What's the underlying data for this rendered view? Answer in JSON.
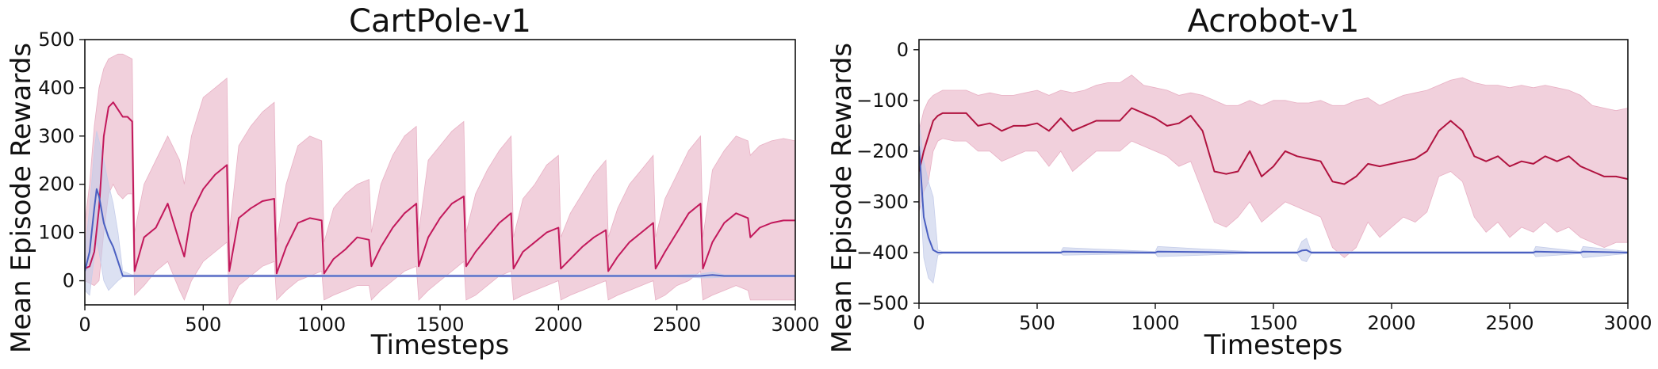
{
  "chart_data": [
    {
      "type": "line",
      "title": "CartPole-v1",
      "xlabel": "Timesteps",
      "ylabel": "Mean Episode Rewards",
      "xlim": [
        0,
        3000
      ],
      "ylim": [
        -50,
        500
      ],
      "xticks": [
        0,
        500,
        1000,
        1500,
        2000,
        2500,
        3000
      ],
      "yticks": [
        0,
        100,
        200,
        300,
        400,
        500
      ],
      "grid": false,
      "series": [
        {
          "color": "#c2185b",
          "fill_color": "#e8b0c4",
          "x": [
            0,
            20,
            40,
            60,
            80,
            100,
            120,
            140,
            160,
            180,
            200,
            210,
            250,
            300,
            350,
            400,
            420,
            450,
            500,
            550,
            600,
            610,
            650,
            700,
            750,
            800,
            810,
            850,
            900,
            950,
            1000,
            1010,
            1050,
            1100,
            1150,
            1200,
            1210,
            1250,
            1300,
            1350,
            1400,
            1410,
            1450,
            1500,
            1550,
            1600,
            1610,
            1650,
            1700,
            1750,
            1800,
            1810,
            1850,
            1900,
            1950,
            2000,
            2010,
            2050,
            2100,
            2150,
            2200,
            2210,
            2250,
            2300,
            2350,
            2400,
            2410,
            2450,
            2500,
            2550,
            2600,
            2610,
            2650,
            2700,
            2750,
            2800,
            2810,
            2850,
            2900,
            2950,
            3000
          ],
          "y": [
            25,
            30,
            60,
            150,
            300,
            360,
            370,
            355,
            340,
            340,
            330,
            20,
            90,
            110,
            160,
            80,
            50,
            140,
            190,
            220,
            240,
            20,
            130,
            150,
            165,
            170,
            15,
            70,
            120,
            130,
            125,
            15,
            45,
            65,
            90,
            85,
            30,
            70,
            110,
            140,
            160,
            30,
            90,
            130,
            160,
            175,
            30,
            60,
            90,
            120,
            140,
            25,
            60,
            80,
            100,
            110,
            25,
            45,
            70,
            90,
            105,
            20,
            50,
            80,
            100,
            120,
            25,
            60,
            100,
            140,
            160,
            25,
            80,
            120,
            140,
            130,
            90,
            110,
            120,
            125,
            125
          ],
          "upper": [
            120,
            200,
            320,
            400,
            440,
            460,
            465,
            470,
            470,
            465,
            460,
            100,
            200,
            250,
            300,
            250,
            200,
            300,
            380,
            400,
            420,
            100,
            280,
            320,
            350,
            370,
            80,
            200,
            280,
            300,
            290,
            80,
            150,
            180,
            200,
            210,
            100,
            200,
            260,
            300,
            320,
            100,
            250,
            280,
            310,
            330,
            100,
            180,
            230,
            270,
            300,
            90,
            170,
            200,
            240,
            260,
            90,
            140,
            180,
            220,
            250,
            90,
            150,
            200,
            230,
            260,
            90,
            170,
            220,
            270,
            300,
            90,
            230,
            270,
            300,
            290,
            260,
            280,
            290,
            295,
            290
          ],
          "lower": [
            0,
            -5,
            -10,
            0,
            100,
            180,
            200,
            180,
            170,
            180,
            180,
            -30,
            -10,
            20,
            40,
            -20,
            -40,
            0,
            40,
            60,
            80,
            -50,
            -10,
            10,
            30,
            40,
            -40,
            -20,
            0,
            10,
            20,
            -40,
            -30,
            -20,
            -10,
            -10,
            -40,
            -20,
            0,
            20,
            30,
            -40,
            -20,
            0,
            20,
            40,
            -40,
            -30,
            -10,
            10,
            20,
            -40,
            -30,
            -20,
            -10,
            0,
            -40,
            -30,
            -20,
            -10,
            0,
            -40,
            -30,
            -20,
            -10,
            0,
            -40,
            -30,
            -10,
            0,
            20,
            -40,
            -30,
            -20,
            -10,
            -20,
            -40,
            -40,
            -40,
            -40,
            -40
          ]
        },
        {
          "color": "#4a5fc1",
          "fill_color": "#c5cdea",
          "x": [
            0,
            20,
            40,
            50,
            60,
            80,
            100,
            120,
            140,
            160,
            200,
            500,
            1000,
            1500,
            2000,
            2500,
            2600,
            2650,
            2700,
            3000
          ],
          "y": [
            20,
            60,
            150,
            190,
            175,
            120,
            90,
            70,
            40,
            10,
            10,
            10,
            10,
            10,
            10,
            10,
            10,
            12,
            10,
            10
          ],
          "upper": [
            60,
            150,
            270,
            310,
            290,
            250,
            200,
            160,
            100,
            20,
            12,
            12,
            12,
            12,
            12,
            12,
            14,
            18,
            12,
            12
          ],
          "lower": [
            -20,
            -30,
            50,
            80,
            60,
            0,
            -20,
            -10,
            0,
            8,
            8,
            8,
            8,
            8,
            8,
            8,
            6,
            6,
            8,
            8
          ]
        }
      ]
    },
    {
      "type": "line",
      "title": "Acrobot-v1",
      "xlabel": "Timesteps",
      "ylabel": "Mean Episode Rewards",
      "xlim": [
        0,
        3000
      ],
      "ylim": [
        -500,
        20
      ],
      "xticks": [
        0,
        500,
        1000,
        1500,
        2000,
        2500,
        3000
      ],
      "yticks": [
        0,
        -100,
        -200,
        -300,
        -400,
        -500
      ],
      "grid": false,
      "series": [
        {
          "color": "#b0123f",
          "fill_color": "#e8b0c4",
          "x": [
            0,
            20,
            40,
            60,
            80,
            100,
            150,
            200,
            250,
            300,
            350,
            400,
            450,
            500,
            550,
            600,
            650,
            700,
            750,
            800,
            850,
            900,
            950,
            1000,
            1050,
            1100,
            1150,
            1200,
            1250,
            1300,
            1350,
            1400,
            1450,
            1500,
            1550,
            1600,
            1650,
            1700,
            1750,
            1800,
            1850,
            1900,
            1950,
            2000,
            2050,
            2100,
            2150,
            2200,
            2250,
            2300,
            2350,
            2400,
            2450,
            2500,
            2550,
            2600,
            2650,
            2700,
            2750,
            2800,
            2850,
            2900,
            2950,
            3000
          ],
          "y": [
            -240,
            -200,
            -170,
            -140,
            -130,
            -125,
            -125,
            -125,
            -150,
            -145,
            -160,
            -150,
            -150,
            -145,
            -160,
            -135,
            -160,
            -150,
            -140,
            -140,
            -140,
            -115,
            -125,
            -135,
            -150,
            -145,
            -130,
            -160,
            -240,
            -245,
            -240,
            -200,
            -250,
            -230,
            -200,
            -210,
            -215,
            -220,
            -260,
            -265,
            -250,
            -225,
            -230,
            -225,
            -220,
            -215,
            -200,
            -160,
            -140,
            -160,
            -210,
            -220,
            -210,
            -230,
            -220,
            -225,
            -210,
            -220,
            -210,
            -230,
            -240,
            -250,
            -250,
            -255
          ],
          "upper": [
            -160,
            -120,
            -100,
            -90,
            -85,
            -80,
            -80,
            -80,
            -90,
            -85,
            -90,
            -90,
            -85,
            -80,
            -90,
            -80,
            -85,
            -80,
            -70,
            -65,
            -65,
            -50,
            -70,
            -75,
            -80,
            -90,
            -85,
            -90,
            -100,
            -110,
            -110,
            -100,
            -110,
            -100,
            -100,
            -105,
            -105,
            -100,
            -110,
            -110,
            -100,
            -95,
            -110,
            -100,
            -90,
            -85,
            -80,
            -70,
            -60,
            -55,
            -65,
            -70,
            -70,
            -75,
            -70,
            -75,
            -70,
            -75,
            -80,
            -90,
            -110,
            -115,
            -120,
            -115
          ],
          "lower": [
            -320,
            -280,
            -260,
            -200,
            -180,
            -175,
            -180,
            -180,
            -200,
            -200,
            -220,
            -210,
            -200,
            -200,
            -230,
            -200,
            -240,
            -220,
            -200,
            -200,
            -200,
            -180,
            -190,
            -200,
            -210,
            -230,
            -220,
            -280,
            -340,
            -350,
            -330,
            -300,
            -340,
            -320,
            -300,
            -310,
            -320,
            -330,
            -390,
            -410,
            -390,
            -340,
            -370,
            -350,
            -330,
            -340,
            -320,
            -250,
            -240,
            -260,
            -330,
            -360,
            -340,
            -370,
            -350,
            -360,
            -340,
            -360,
            -350,
            -370,
            -380,
            -390,
            -380,
            -380
          ]
        },
        {
          "color": "#4a5fc1",
          "fill_color": "#c5cdea",
          "x": [
            0,
            20,
            40,
            60,
            80,
            100,
            200,
            600,
            610,
            1000,
            1010,
            1400,
            1600,
            1620,
            1640,
            1660,
            2000,
            2600,
            2610,
            2800,
            2810,
            3000
          ],
          "y": [
            -190,
            -330,
            -370,
            -395,
            -400,
            -400,
            -400,
            -400,
            -398,
            -400,
            -398,
            -400,
            -400,
            -396,
            -395,
            -400,
            -400,
            -400,
            -398,
            -400,
            -398,
            -400
          ],
          "upper": [
            -140,
            -220,
            -260,
            -290,
            -395,
            -398,
            -398,
            -398,
            -390,
            -398,
            -388,
            -398,
            -398,
            -378,
            -372,
            -398,
            -398,
            -398,
            -388,
            -398,
            -388,
            -398
          ],
          "lower": [
            -240,
            -410,
            -450,
            -460,
            -405,
            -402,
            -402,
            -402,
            -405,
            -402,
            -408,
            -402,
            -402,
            -415,
            -418,
            -402,
            -402,
            -402,
            -408,
            -402,
            -410,
            -402
          ]
        }
      ]
    }
  ]
}
